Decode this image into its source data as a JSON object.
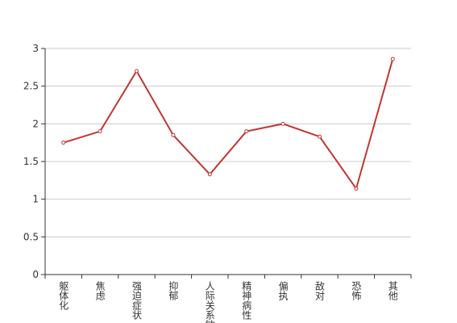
{
  "chart_data": {
    "type": "line",
    "categories": [
      "躯体化",
      "焦虑",
      "强迫症状",
      "抑郁",
      "人际关系敏感",
      "精神病性",
      "偏执",
      "敌对",
      "恐怖",
      "其他"
    ],
    "values": [
      1.75,
      1.9,
      2.7,
      1.85,
      1.33,
      1.9,
      2.0,
      1.83,
      1.14,
      2.86
    ],
    "color": "#c23531",
    "ylim": [
      0,
      3
    ],
    "yticks": [
      0,
      0.5,
      1,
      1.5,
      2,
      2.5,
      3
    ],
    "grid": true
  }
}
